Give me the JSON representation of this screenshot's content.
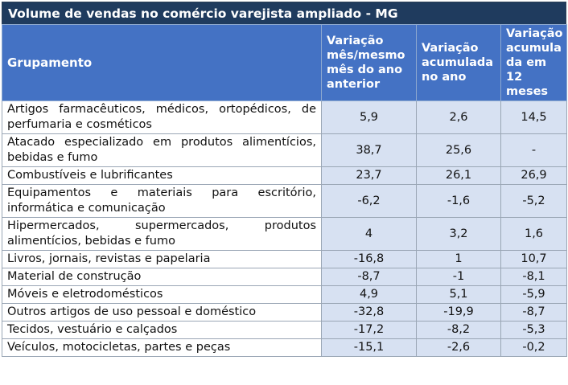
{
  "title": "Volume de vendas no comércio varejista ampliado - MG",
  "headers": {
    "grupamento": "Grupamento",
    "col1": "Variação mês/mesmo mês do ano anterior",
    "col2": "Variação acumulada no ano",
    "col3": "Variação acumula da em 12 meses"
  },
  "rows": [
    {
      "label": "Artigos farmacêuticos, médicos, ortopédicos, de perfumaria e cosméticos",
      "v1": "5,9",
      "v2": "2,6",
      "v3": "14,5"
    },
    {
      "label": "Atacado especializado em produtos alimentícios, bebidas e fumo",
      "v1": "38,7",
      "v2": "25,6",
      "v3": "-"
    },
    {
      "label": "Combustíveis e lubrificantes",
      "v1": "23,7",
      "v2": "26,1",
      "v3": "26,9"
    },
    {
      "label": "Equipamentos e materiais para escritório, informática e comunicação",
      "v1": "-6,2",
      "v2": "-1,6",
      "v3": "-5,2"
    },
    {
      "label": "Hipermercados, supermercados, produtos alimentícios, bebidas e fumo",
      "v1": "4",
      "v2": "3,2",
      "v3": "1,6"
    },
    {
      "label": "Livros, jornais, revistas e papelaria",
      "v1": "-16,8",
      "v2": "1",
      "v3": "10,7"
    },
    {
      "label": "Material de construção",
      "v1": "-8,7",
      "v2": "-1",
      "v3": "-8,1"
    },
    {
      "label": "Móveis e eletrodomésticos",
      "v1": "4,9",
      "v2": "5,1",
      "v3": "-5,9"
    },
    {
      "label": "Outros artigos de uso pessoal e doméstico",
      "v1": "-32,8",
      "v2": "-19,9",
      "v3": "-8,7"
    },
    {
      "label": "Tecidos, vestuário e calçados",
      "v1": "-17,2",
      "v2": "-8,2",
      "v3": "-5,3"
    },
    {
      "label": "Veículos, motocicletas, partes e peças",
      "v1": "-15,1",
      "v2": "-2,6",
      "v3": "-0,2"
    }
  ]
}
